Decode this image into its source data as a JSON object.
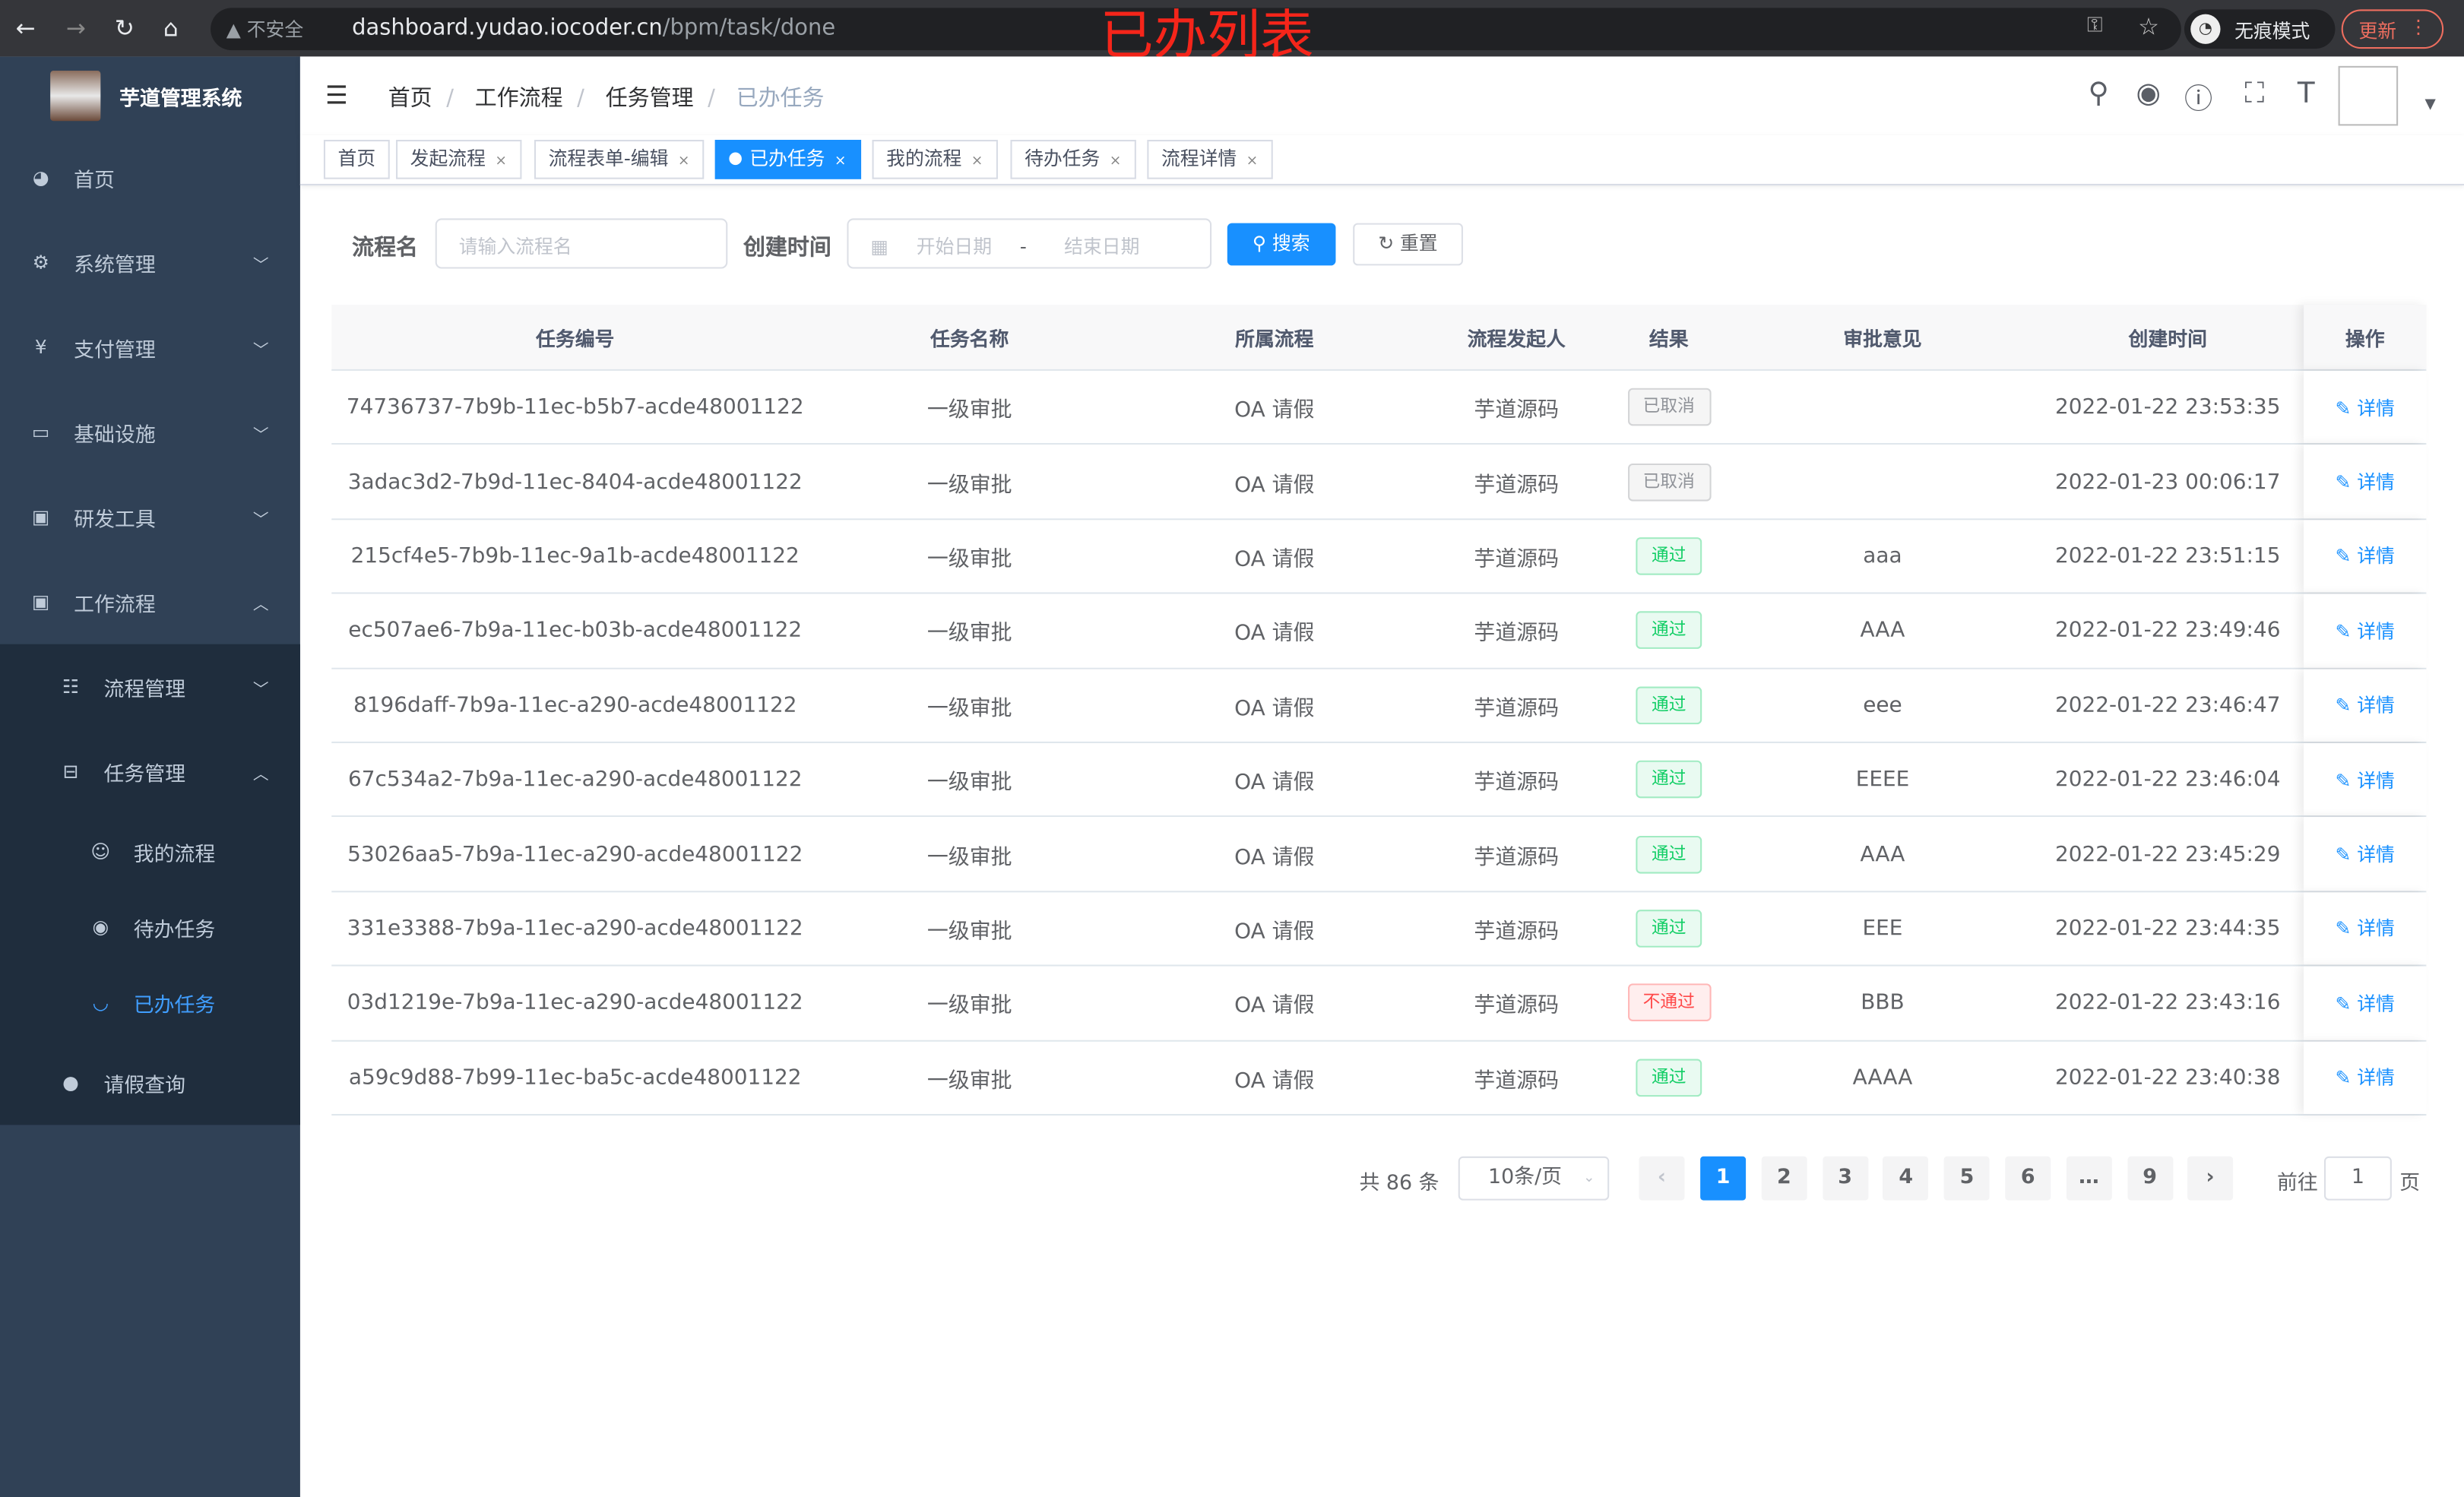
{
  "browser": {
    "security": "不安全",
    "url_host": "dashboard.yudao.iocoder.cn",
    "url_path": "/bpm/task/done",
    "incognito": "无痕模式",
    "update": "更新"
  },
  "overlay_title": "已办列表",
  "app": {
    "name": "芋道管理系统"
  },
  "sidebar": {
    "items": [
      {
        "label": "首页",
        "icon": "dashboard-icon"
      },
      {
        "label": "系统管理",
        "icon": "gear-icon"
      },
      {
        "label": "支付管理",
        "icon": "yen-icon"
      },
      {
        "label": "基础设施",
        "icon": "monitor-icon"
      },
      {
        "label": "研发工具",
        "icon": "toolbox-icon"
      },
      {
        "label": "工作流程",
        "icon": "toolbox-icon"
      }
    ],
    "sub": [
      {
        "label": "流程管理",
        "icon": "list-icon"
      },
      {
        "label": "任务管理",
        "icon": "tree-icon"
      }
    ],
    "sub3": [
      {
        "label": "我的流程",
        "icon": "people-icon"
      },
      {
        "label": "待办任务",
        "icon": "eye-icon"
      },
      {
        "label": "已办任务",
        "icon": "eye-closed-icon",
        "active": true
      }
    ],
    "last": {
      "label": "请假查询",
      "icon": "user-icon"
    }
  },
  "breadcrumb": [
    "首页",
    "工作流程",
    "任务管理",
    "已办任务"
  ],
  "tags": [
    {
      "label": "首页"
    },
    {
      "label": "发起流程"
    },
    {
      "label": "流程表单-编辑"
    },
    {
      "label": "已办任务",
      "active": true
    },
    {
      "label": "我的流程"
    },
    {
      "label": "待办任务"
    },
    {
      "label": "流程详情"
    }
  ],
  "filters": {
    "name_label": "流程名",
    "name_placeholder": "请输入流程名",
    "time_label": "创建时间",
    "start_placeholder": "开始日期",
    "range_sep": "-",
    "end_placeholder": "结束日期",
    "search": "搜索",
    "reset": "重置"
  },
  "table": {
    "headers": [
      "任务编号",
      "任务名称",
      "所属流程",
      "流程发起人",
      "结果",
      "审批意见",
      "创建时间",
      "操作"
    ],
    "action_label": "详情",
    "rows": [
      [
        "74736737-7b9b-11ec-b5b7-acde48001122",
        "一级审批",
        "OA 请假",
        "芋道源码",
        "已取消",
        "",
        "2022-01-22 23:53:35"
      ],
      [
        "3adac3d2-7b9d-11ec-8404-acde48001122",
        "一级审批",
        "OA 请假",
        "芋道源码",
        "已取消",
        "",
        "2022-01-23 00:06:17"
      ],
      [
        "215cf4e5-7b9b-11ec-9a1b-acde48001122",
        "一级审批",
        "OA 请假",
        "芋道源码",
        "通过",
        "aaa",
        "2022-01-22 23:51:15"
      ],
      [
        "ec507ae6-7b9a-11ec-b03b-acde48001122",
        "一级审批",
        "OA 请假",
        "芋道源码",
        "通过",
        "AAA",
        "2022-01-22 23:49:46"
      ],
      [
        "8196daff-7b9a-11ec-a290-acde48001122",
        "一级审批",
        "OA 请假",
        "芋道源码",
        "通过",
        "eee",
        "2022-01-22 23:46:47"
      ],
      [
        "67c534a2-7b9a-11ec-a290-acde48001122",
        "一级审批",
        "OA 请假",
        "芋道源码",
        "通过",
        "EEEE",
        "2022-01-22 23:46:04"
      ],
      [
        "53026aa5-7b9a-11ec-a290-acde48001122",
        "一级审批",
        "OA 请假",
        "芋道源码",
        "通过",
        "AAA",
        "2022-01-22 23:45:29"
      ],
      [
        "331e3388-7b9a-11ec-a290-acde48001122",
        "一级审批",
        "OA 请假",
        "芋道源码",
        "通过",
        "EEE",
        "2022-01-22 23:44:35"
      ],
      [
        "03d1219e-7b9a-11ec-a290-acde48001122",
        "一级审批",
        "OA 请假",
        "芋道源码",
        "不通过",
        "BBB",
        "2022-01-22 23:43:16"
      ],
      [
        "a59c9d88-7b99-11ec-ba5c-acde48001122",
        "一级审批",
        "OA 请假",
        "芋道源码",
        "通过",
        "AAAA",
        "2022-01-22 23:40:38"
      ]
    ]
  },
  "status_colors": {
    "已取消": "#909399",
    "通过": "#13ce66",
    "不通过": "#ff4949"
  },
  "pagination": {
    "total": "共 86 条",
    "page_size": "10条/页",
    "pages": [
      "1",
      "2",
      "3",
      "4",
      "5",
      "6",
      "…",
      "9"
    ],
    "current": "1",
    "goto_label": "前往",
    "goto_value": "1",
    "page_suffix": "页"
  }
}
